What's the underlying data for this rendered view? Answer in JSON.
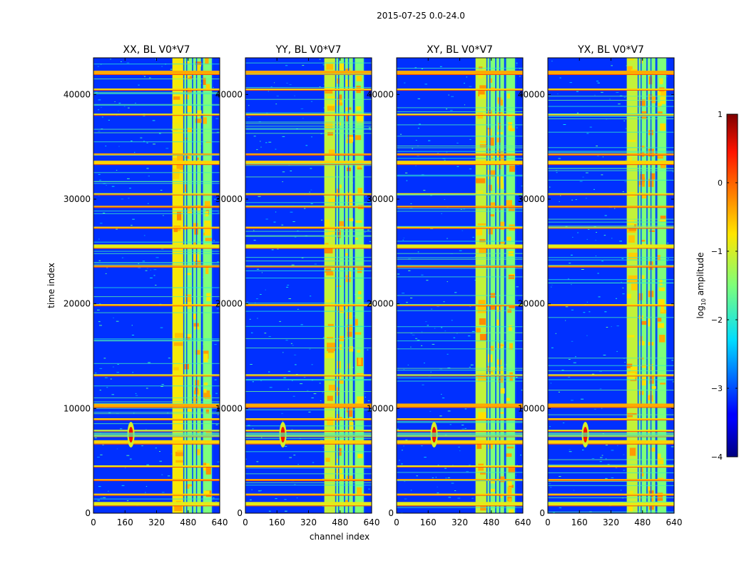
{
  "chart_data": {
    "type": "heatmap",
    "suptitle": "2015-07-25 0.0-24.0",
    "xlabel": "channel index",
    "ylabel": "time index",
    "xlim": [
      0,
      640
    ],
    "ylim": [
      0,
      43500
    ],
    "xticks": [
      0,
      160,
      320,
      480,
      640
    ],
    "yticks": [
      0,
      10000,
      20000,
      30000,
      40000
    ],
    "panels": [
      {
        "title": "XX, BL V0*V7",
        "pol": "XX"
      },
      {
        "title": "YY, BL V0*V7",
        "pol": "YY"
      },
      {
        "title": "XY, BL V0*V7",
        "pol": "XY"
      },
      {
        "title": "YX, BL V0*V7",
        "pol": "YX"
      }
    ],
    "colorbar": {
      "label_prefix": "log",
      "label_sub": "10",
      "label_suffix": " amplitude",
      "colormap": "jet",
      "range": [
        -4,
        1
      ],
      "ticks": [
        1,
        0,
        -1,
        -2,
        -3,
        -4
      ]
    },
    "features": {
      "hot_channel_bands": [
        [
          400,
          460
        ],
        [
          460,
          500
        ],
        [
          505,
          545
        ],
        [
          555,
          600
        ]
      ],
      "rfi_time_rows": [
        900,
        1800,
        3200,
        4500,
        6800,
        7400,
        7900,
        9000,
        10300,
        13200,
        19900,
        23600,
        25500,
        27300,
        29300,
        30500,
        33500,
        34300,
        38100,
        40500,
        42100
      ],
      "broadband_burst": {
        "channel": 190,
        "time_center": 7500
      }
    }
  }
}
